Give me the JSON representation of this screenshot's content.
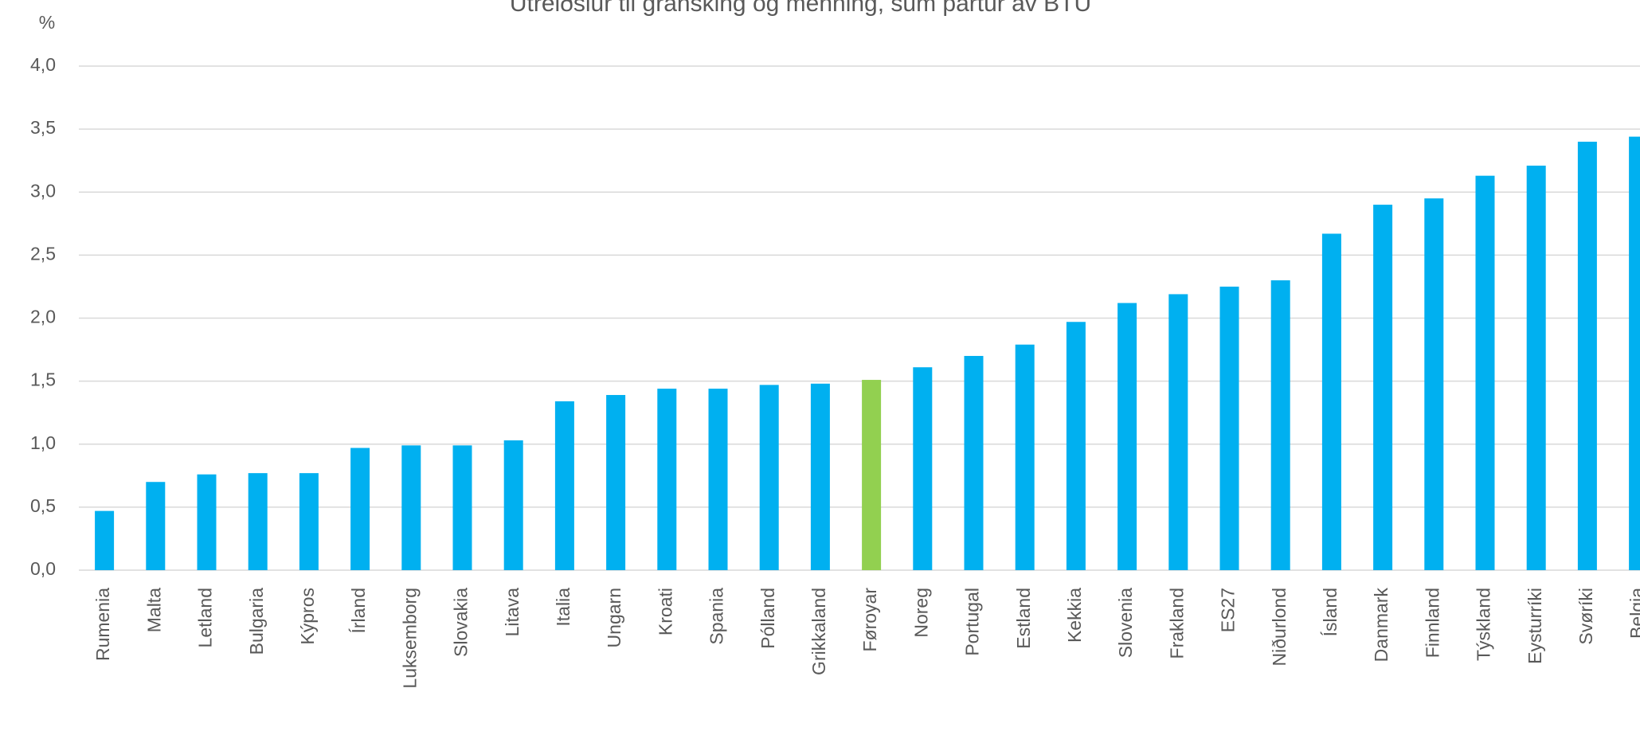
{
  "chart_data": {
    "type": "bar",
    "title": "Útreiðslur til gransking og menning, sum partur av BTÚ",
    "y_label": "%",
    "categories": [
      "Rumenia",
      "Malta",
      "Letland",
      "Bulgaria",
      "Kýpros",
      "Írland",
      "Luksemborg",
      "Slovakia",
      "Litava",
      "Italia",
      "Ungarn",
      "Kroati",
      "Spania",
      "Pólland",
      "Grikkaland",
      "Føroyar",
      "Noreg",
      "Portugal",
      "Estland",
      "Kekkia",
      "Slovenia",
      "Frakland",
      "ES27",
      "Niðurlond",
      "Ísland",
      "Danmark",
      "Finnland",
      "Týskland",
      "Eysturríki",
      "Svøríki",
      "Belgia"
    ],
    "values": [
      0.47,
      0.7,
      0.76,
      0.77,
      0.77,
      0.97,
      0.99,
      0.99,
      1.03,
      1.34,
      1.39,
      1.44,
      1.44,
      1.47,
      1.48,
      1.51,
      1.61,
      1.7,
      1.79,
      1.97,
      2.12,
      2.19,
      2.25,
      2.3,
      2.67,
      2.9,
      2.95,
      3.13,
      3.21,
      3.4,
      3.44
    ],
    "colors": [
      "#00b0f0",
      "#00b0f0",
      "#00b0f0",
      "#00b0f0",
      "#00b0f0",
      "#00b0f0",
      "#00b0f0",
      "#00b0f0",
      "#00b0f0",
      "#00b0f0",
      "#00b0f0",
      "#00b0f0",
      "#00b0f0",
      "#00b0f0",
      "#00b0f0",
      "#92d050",
      "#00b0f0",
      "#00b0f0",
      "#00b0f0",
      "#00b0f0",
      "#00b0f0",
      "#00b0f0",
      "#00b0f0",
      "#00b0f0",
      "#00b0f0",
      "#00b0f0",
      "#00b0f0",
      "#00b0f0",
      "#00b0f0",
      "#00b0f0",
      "#00b0f0"
    ],
    "ylim": [
      0,
      4
    ],
    "yticks": [
      {
        "value": 0,
        "label": "0,0"
      },
      {
        "value": 0.5,
        "label": "0,5"
      },
      {
        "value": 1,
        "label": "1,0"
      },
      {
        "value": 1.5,
        "label": "1,5"
      },
      {
        "value": 2,
        "label": "2,0"
      },
      {
        "value": 2.5,
        "label": "2,5"
      },
      {
        "value": 3,
        "label": "3,0"
      },
      {
        "value": 3.5,
        "label": "3,5"
      },
      {
        "value": 4,
        "label": "4,0"
      }
    ],
    "grid": true
  }
}
